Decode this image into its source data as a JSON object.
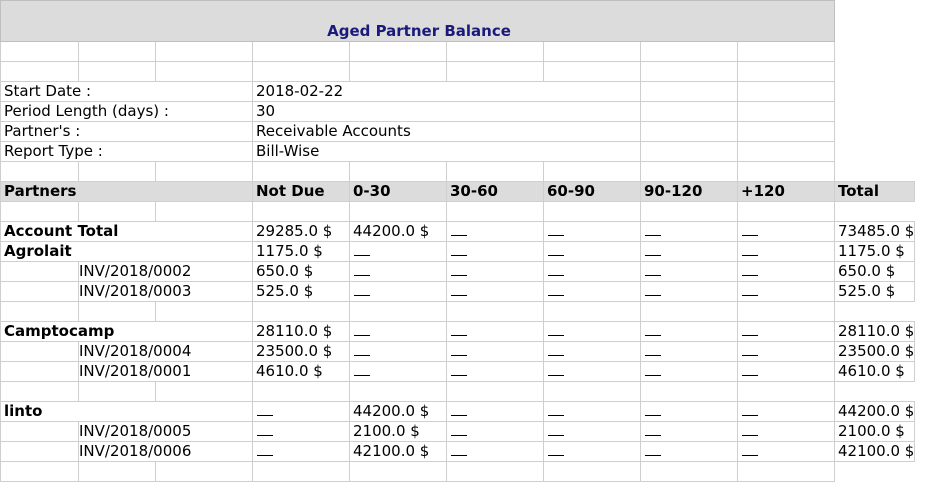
{
  "title": "Aged Partner Balance",
  "info": [
    {
      "label": "Start Date :",
      "value": "2018-02-22"
    },
    {
      "label": "Period Length (days) :",
      "value": "30"
    },
    {
      "label": "Partner's :",
      "value": "Receivable Accounts"
    },
    {
      "label": "Report Type :",
      "value": "Bill-Wise"
    }
  ],
  "headers": {
    "partners": "Partners",
    "not_due": "Not Due",
    "p0_30": "0-30",
    "p30_60": "30-60",
    "p60_90": "60-90",
    "p90_120": "90-120",
    "p120": "+120",
    "total": "Total"
  },
  "rows": [
    {
      "type": "partner",
      "name": "Account Total",
      "not_due": "29285.0 $",
      "p0_30": "44200.0 $",
      "p30_60": "",
      "p60_90": "",
      "p90_120": "",
      "p120": "",
      "total": "73485.0 $"
    },
    {
      "type": "partner",
      "name": "Agrolait",
      "not_due": "1175.0 $",
      "p0_30": "",
      "p30_60": "",
      "p60_90": "",
      "p90_120": "",
      "p120": "",
      "total": "1175.0 $"
    },
    {
      "type": "invoice",
      "name": "INV/2018/0002",
      "not_due": "650.0 $",
      "p0_30": "",
      "p30_60": "",
      "p60_90": "",
      "p90_120": "",
      "p120": "",
      "total": "650.0 $"
    },
    {
      "type": "invoice",
      "name": "INV/2018/0003",
      "not_due": "525.0 $",
      "p0_30": "",
      "p30_60": "",
      "p60_90": "",
      "p90_120": "",
      "p120": "",
      "total": "525.0 $"
    },
    {
      "type": "spacer"
    },
    {
      "type": "partner",
      "name": "Camptocamp",
      "not_due": "28110.0 $",
      "p0_30": "",
      "p30_60": "",
      "p60_90": "",
      "p90_120": "",
      "p120": "",
      "total": "28110.0 $"
    },
    {
      "type": "invoice",
      "name": "INV/2018/0004",
      "not_due": "23500.0 $",
      "p0_30": "",
      "p30_60": "",
      "p60_90": "",
      "p90_120": "",
      "p120": "",
      "total": "23500.0 $"
    },
    {
      "type": "invoice",
      "name": "INV/2018/0001",
      "not_due": "4610.0 $",
      "p0_30": "",
      "p30_60": "",
      "p60_90": "",
      "p90_120": "",
      "p120": "",
      "total": "4610.0 $"
    },
    {
      "type": "spacer"
    },
    {
      "type": "partner",
      "name": "linto",
      "not_due": "",
      "p0_30": "44200.0 $",
      "p30_60": "",
      "p60_90": "",
      "p90_120": "",
      "p120": "",
      "total": "44200.0 $"
    },
    {
      "type": "invoice",
      "name": "INV/2018/0005",
      "not_due": "",
      "p0_30": "2100.0 $",
      "p30_60": "",
      "p60_90": "",
      "p90_120": "",
      "p120": "",
      "total": "2100.0 $"
    },
    {
      "type": "invoice",
      "name": "INV/2018/0006",
      "not_due": "",
      "p0_30": "42100.0 $",
      "p30_60": "",
      "p60_90": "",
      "p90_120": "",
      "p120": "",
      "total": "42100.0 $"
    }
  ]
}
